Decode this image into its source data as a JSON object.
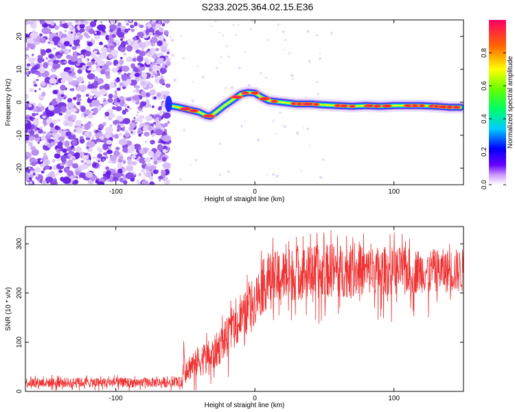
{
  "title": "S233.2025.364.02.15.E36",
  "chart_data": [
    {
      "type": "heatmap",
      "name": "spectrogram",
      "xlabel": "Height of straight line (km)",
      "ylabel": "Frequency (Hz)",
      "xlim": [
        -165,
        150
      ],
      "ylim": [
        -25,
        25
      ],
      "xticks": [
        -100,
        0,
        100
      ],
      "yticks": [
        -20,
        -10,
        0,
        10,
        20
      ],
      "noise_region_x": [
        -165,
        -62
      ],
      "ridge": {
        "x": [
          -62,
          -55,
          -50,
          -45,
          -40,
          -35,
          -32,
          -28,
          -22,
          -15,
          -10,
          -5,
          0,
          5,
          10,
          20,
          30,
          40,
          50,
          60,
          70,
          80,
          90,
          100,
          110,
          120,
          130,
          140,
          148
        ],
        "freq": [
          -1,
          -1.5,
          -2,
          -2.5,
          -3,
          -4,
          -4.2,
          -3,
          -1,
          1,
          2.5,
          3,
          2.8,
          1.5,
          0.5,
          0,
          -0.5,
          -0.5,
          -0.8,
          -1,
          -1.2,
          -1,
          -1.2,
          -1,
          -1,
          -1,
          -1.2,
          -1.5,
          -1.5
        ]
      },
      "colorbar": {
        "label": "Normalized spectral amplitude",
        "range": [
          0,
          1
        ],
        "ticks": [
          "0.0",
          "0.2",
          "0.4",
          "0.6",
          "0.8"
        ],
        "tick_values": [
          0,
          0.2,
          0.4,
          0.6,
          0.8
        ]
      }
    },
    {
      "type": "line",
      "name": "snr",
      "xlabel": "Height of straight line (km)",
      "ylabel": "SNR (10 * v/v)",
      "xlim": [
        -165,
        150
      ],
      "ylim": [
        0,
        335
      ],
      "xticks": [
        -100,
        0,
        100
      ],
      "yticks": [
        0,
        100,
        200,
        300
      ],
      "color": "#ee3333",
      "envelope": {
        "x": [
          -165,
          -60,
          -52,
          -51,
          -50,
          -45,
          -30,
          -20,
          -10,
          0,
          5,
          10,
          20,
          30,
          40,
          50,
          60,
          80,
          100,
          120,
          140,
          150
        ],
        "mean": [
          18,
          18,
          20,
          95,
          40,
          55,
          75,
          110,
          145,
          185,
          210,
          225,
          235,
          240,
          242,
          245,
          245,
          245,
          245,
          245,
          245,
          245
        ],
        "amp": [
          10,
          10,
          10,
          60,
          25,
          30,
          35,
          40,
          45,
          50,
          55,
          55,
          55,
          55,
          55,
          55,
          55,
          50,
          50,
          45,
          45,
          45
        ]
      }
    }
  ]
}
